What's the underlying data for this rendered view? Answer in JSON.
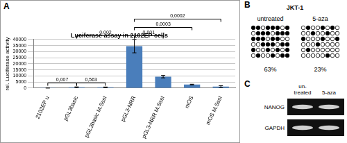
{
  "chart_data": {
    "type": "bar",
    "panel_label": "A",
    "title": "Luciferase assay in 2102EP cells",
    "ylabel": "rel. Luciferase activity",
    "categories": [
      "2102EP u",
      "pGL3basic",
      "pGL3basic M.SssI",
      "pGL3-NRR",
      "pGL3-NRR M.SssI",
      "mOS",
      "mOS M.SssI"
    ],
    "values": [
      100,
      700,
      600,
      34500,
      9400,
      2900,
      1200
    ],
    "errors": [
      50,
      300,
      300,
      5500,
      1000,
      300,
      800
    ],
    "color": "#4a7ebb",
    "ylim": [
      0,
      40000
    ],
    "yticks": [
      0,
      5000,
      10000,
      15000,
      20000,
      25000,
      30000,
      35000,
      40000
    ],
    "grid": true,
    "annotations": [
      {
        "between": [
          "2102EP u",
          "pGL3basic"
        ],
        "text": "0,007"
      },
      {
        "between": [
          "pGL3basic",
          "pGL3basic M.SssI"
        ],
        "text": "0,563"
      },
      {
        "between": [
          "pGL3basic",
          "pGL3-NRR"
        ],
        "text": "0,002"
      },
      {
        "between": [
          "pGL3-NRR",
          "pGL3-NRR M.SssI"
        ],
        "text": "0,001"
      },
      {
        "between": [
          "pGL3-NRR",
          "mOS"
        ],
        "text": "0,0003"
      },
      {
        "between": [
          "pGL3-NRR",
          "mOS M.SssI"
        ],
        "text": "0,0002"
      }
    ]
  },
  "panel_b": {
    "label": "B",
    "title": "JKT-1",
    "groups": [
      {
        "name": "untreated",
        "percent": "63%",
        "pattern": [
          [
            1,
            1,
            0,
            1,
            1,
            1,
            0,
            1
          ],
          [
            0,
            1,
            1,
            1,
            0,
            1,
            1,
            1
          ],
          [
            1,
            1,
            1,
            0,
            1,
            1,
            0,
            0
          ],
          [
            0,
            0,
            1,
            1,
            1,
            0,
            1,
            1
          ],
          [
            1,
            0,
            0,
            1,
            0,
            1,
            0,
            1
          ],
          [
            0,
            1,
            0,
            0,
            1,
            0,
            1,
            1
          ]
        ]
      },
      {
        "name": "5-aza",
        "percent": "23%",
        "pattern": [
          [
            0,
            1,
            0,
            0,
            1,
            0,
            1,
            0
          ],
          [
            0,
            0,
            1,
            0,
            0,
            1,
            0,
            0
          ],
          [
            1,
            0,
            0,
            0,
            1,
            0,
            0,
            1
          ],
          [
            0,
            0,
            0,
            1,
            0,
            0,
            0,
            0
          ],
          [
            0,
            1,
            0,
            0,
            0,
            0,
            0,
            0
          ],
          [
            0,
            0,
            0,
            0,
            0,
            1,
            0,
            0
          ]
        ]
      }
    ]
  },
  "panel_c": {
    "label": "C",
    "lanes": [
      [
        "un-",
        "treated"
      ],
      [
        "5-aza"
      ]
    ],
    "rows": [
      "NANOG",
      "GAPDH"
    ]
  }
}
